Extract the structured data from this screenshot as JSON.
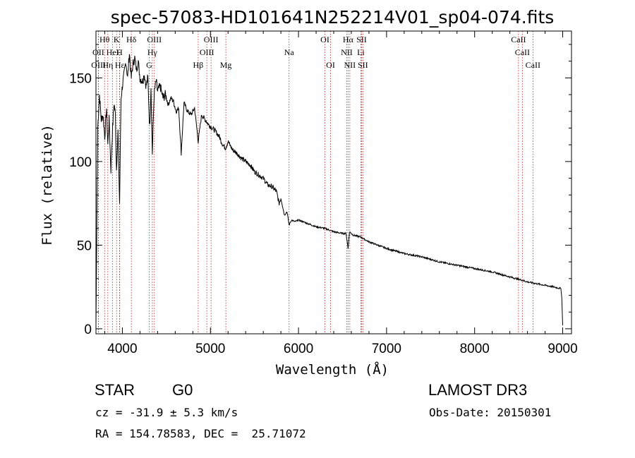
{
  "chart_data": {
    "type": "line",
    "title": "spec-57083-HD101641N252214V01_sp04-074.fits",
    "xlabel": "Wavelength (Å)",
    "ylabel": "Flux (relative)",
    "xlim": [
      3700,
      9100
    ],
    "ylim": [
      -3,
      178
    ],
    "xticks": [
      4000,
      5000,
      6000,
      7000,
      8000,
      9000
    ],
    "yticks": [
      0,
      50,
      100,
      150
    ],
    "series": [
      {
        "name": "spectrum",
        "x": [
          3700,
          3720,
          3740,
          3760,
          3780,
          3800,
          3820,
          3835,
          3850,
          3870,
          3889,
          3905,
          3920,
          3933,
          3950,
          3968,
          3985,
          4000,
          4020,
          4040,
          4060,
          4080,
          4101,
          4120,
          4140,
          4160,
          4180,
          4200,
          4226,
          4250,
          4270,
          4290,
          4310,
          4325,
          4340,
          4360,
          4383,
          4400,
          4430,
          4460,
          4490,
          4520,
          4550,
          4580,
          4610,
          4640,
          4668,
          4700,
          4740,
          4780,
          4820,
          4861,
          4900,
          4940,
          4980,
          5020,
          5060,
          5100,
          5140,
          5172,
          5200,
          5250,
          5300,
          5350,
          5400,
          5450,
          5500,
          5550,
          5600,
          5650,
          5700,
          5750,
          5780,
          5800,
          5840,
          5870,
          5893,
          5920,
          5960,
          6000,
          6100,
          6200,
          6300,
          6400,
          6500,
          6540,
          6563,
          6580,
          6620,
          6700,
          6800,
          6900,
          7000,
          7200,
          7400,
          7600,
          7800,
          8000,
          8200,
          8400,
          8542,
          8600,
          8700,
          8800,
          8900,
          8980,
          8990,
          9000
        ],
        "y": [
          2,
          120,
          140,
          125,
          128,
          115,
          132,
          110,
          125,
          95,
          120,
          135,
          128,
          95,
          118,
          75,
          138,
          145,
          152,
          160,
          150,
          165,
          150,
          158,
          162,
          155,
          160,
          150,
          148,
          152,
          145,
          150,
          120,
          145,
          105,
          140,
          148,
          142,
          145,
          138,
          140,
          134,
          138,
          136,
          130,
          132,
          105,
          135,
          130,
          128,
          132,
          112,
          128,
          125,
          122,
          120,
          118,
          115,
          110,
          108,
          112,
          107,
          105,
          102,
          100,
          98,
          94,
          92,
          90,
          86,
          85,
          82,
          75,
          78,
          68,
          70,
          62,
          65,
          64,
          65,
          63,
          61,
          60,
          58,
          57,
          57,
          48,
          58,
          56,
          55,
          52,
          50,
          48,
          45,
          43,
          40,
          38,
          36,
          34,
          31,
          29,
          28,
          27,
          26,
          25,
          24,
          18,
          2
        ]
      }
    ],
    "spectral_lines": [
      {
        "label": "Hθ",
        "wl": 3798,
        "row": 0
      },
      {
        "label": "K",
        "wl": 3934,
        "row": 0
      },
      {
        "label": "Hδ",
        "wl": 4102,
        "row": 0
      },
      {
        "label": "OIII",
        "wl": 4363,
        "row": 0
      },
      {
        "label": "OIII",
        "wl": 5007,
        "row": 0
      },
      {
        "label": "OI",
        "wl": 6300,
        "row": 0
      },
      {
        "label": "Hα",
        "wl": 6563,
        "row": 0
      },
      {
        "label": "SII",
        "wl": 6716,
        "row": 0
      },
      {
        "label": "CaII",
        "wl": 8498,
        "row": 0
      },
      {
        "label": "OII",
        "wl": 3727,
        "row": 1
      },
      {
        "label": "HeI",
        "wl": 3889,
        "row": 1
      },
      {
        "label": "H",
        "wl": 3968,
        "row": 1
      },
      {
        "label": "Hγ",
        "wl": 4340,
        "row": 1
      },
      {
        "label": "OIII",
        "wl": 4959,
        "row": 1
      },
      {
        "label": "Na",
        "wl": 5893,
        "row": 1
      },
      {
        "label": "NII",
        "wl": 6548,
        "row": 1
      },
      {
        "label": "Li",
        "wl": 6708,
        "row": 1
      },
      {
        "label": "CaII",
        "wl": 8542,
        "row": 1
      },
      {
        "label": "OIII",
        "wl": 3729,
        "row": 2
      },
      {
        "label": "Hη",
        "wl": 3835,
        "row": 2
      },
      {
        "label": "Hε",
        "wl": 3970,
        "row": 2
      },
      {
        "label": "G",
        "wl": 4305,
        "row": 2
      },
      {
        "label": "Hβ",
        "wl": 4861,
        "row": 2
      },
      {
        "label": "Mg",
        "wl": 5175,
        "row": 2
      },
      {
        "label": "OI",
        "wl": 6364,
        "row": 2
      },
      {
        "label": "NII",
        "wl": 6583,
        "row": 2
      },
      {
        "label": "SII",
        "wl": 6731,
        "row": 2
      },
      {
        "label": "CaII",
        "wl": 8662,
        "row": 2
      }
    ]
  },
  "info": {
    "object_class": "STAR",
    "subclass": "G0",
    "survey": "LAMOST DR3",
    "redshift": "cz = -31.9 ± 5.3 km/s",
    "obs_date": "Obs-Date: 20150301",
    "coords": "RA = 154.78583, DEC =  25.71072"
  }
}
